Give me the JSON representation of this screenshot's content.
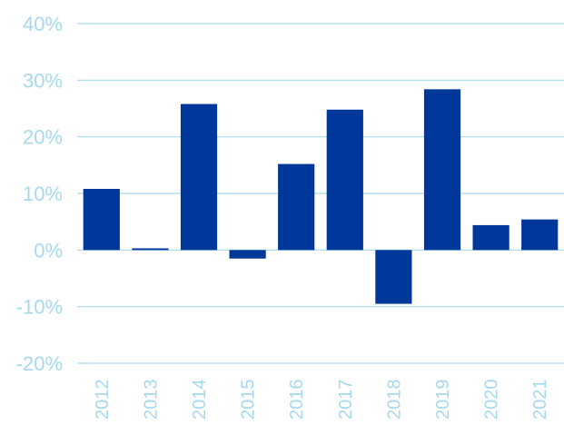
{
  "chart_data": {
    "type": "bar",
    "title": "",
    "xlabel": "",
    "ylabel": "",
    "categories": [
      "2012",
      "2013",
      "2014",
      "2015",
      "2016",
      "2017",
      "2018",
      "2019",
      "2020",
      "2021"
    ],
    "values": [
      10.8,
      0.3,
      25.8,
      -1.5,
      15.2,
      24.8,
      -9.5,
      28.4,
      4.4,
      5.4
    ],
    "ylim": [
      -20,
      40
    ],
    "yticks": [
      -20,
      -10,
      0,
      10,
      20,
      30,
      40
    ],
    "ytick_labels": [
      "-20%",
      "-10%",
      "0%",
      "10%",
      "20%",
      "30%",
      "40%"
    ],
    "grid": true,
    "legend": "none",
    "colors": {
      "bar": "#00379B",
      "grid": "#A6D9EE",
      "tick_label": "#A6D9EE"
    }
  }
}
